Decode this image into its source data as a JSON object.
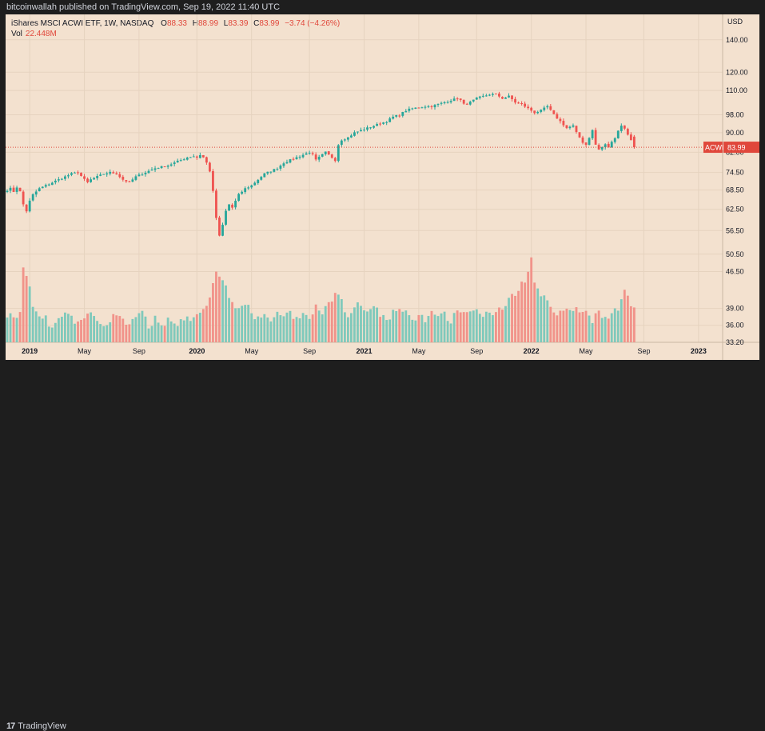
{
  "header": {
    "publisher_text": "bitcoinwallah published on TradingView.com, Sep 19, 2022 11:40 UTC"
  },
  "legend": {
    "symbol_text": "iShares MSCI ACWI ETF, 1W, NASDAQ",
    "open_label": "O",
    "open_value": "88.33",
    "high_label": "H",
    "high_value": "88.99",
    "low_label": "L",
    "low_value": "83.39",
    "close_label": "C",
    "close_value": "83.99",
    "change_value": "−3.74 (−4.26%)",
    "vol_label": "Vol",
    "vol_value": "22.448M"
  },
  "footer": {
    "brand_text": "TradingView",
    "logo_text": "17"
  },
  "colors": {
    "up": "#26a69a",
    "down": "#ef5350",
    "up_vol": "#7fc9bb",
    "down_vol": "#f1938a",
    "background": "#f3e1cf",
    "price_line": "#e0473b"
  },
  "chart_data": {
    "type": "candlestick",
    "symbol": "ACWI",
    "interval": "1W",
    "currency_label": "USD",
    "current_price": 83.99,
    "current_price_label": "ACWI",
    "current_price_text": "83.99",
    "y_scale": "log",
    "ylim": [
      33.2,
      158
    ],
    "y_ticks": [
      {
        "value": 140,
        "label": "140.00"
      },
      {
        "value": 120,
        "label": "120.00"
      },
      {
        "value": 110,
        "label": "110.00"
      },
      {
        "value": 98,
        "label": "98.00"
      },
      {
        "value": 90,
        "label": "90.00"
      },
      {
        "value": 82,
        "label": "82.00"
      },
      {
        "value": 74.5,
        "label": "74.50"
      },
      {
        "value": 68.5,
        "label": "68.50"
      },
      {
        "value": 62.5,
        "label": "62.50"
      },
      {
        "value": 56.5,
        "label": "56.50"
      },
      {
        "value": 50.5,
        "label": "50.50"
      },
      {
        "value": 46.5,
        "label": "46.50"
      },
      {
        "value": 39,
        "label": "39.00"
      },
      {
        "value": 36,
        "label": "36.00"
      },
      {
        "value": 33.2,
        "label": "33.20"
      }
    ],
    "x_ticks": [
      {
        "label": "2019",
        "week": 7,
        "bold": true
      },
      {
        "label": "May",
        "week": 24,
        "bold": false
      },
      {
        "label": "Sep",
        "week": 41,
        "bold": false
      },
      {
        "label": "2020",
        "week": 59,
        "bold": true
      },
      {
        "label": "May",
        "week": 76,
        "bold": false
      },
      {
        "label": "Sep",
        "week": 94,
        "bold": false
      },
      {
        "label": "2021",
        "week": 111,
        "bold": true
      },
      {
        "label": "May",
        "week": 128,
        "bold": false
      },
      {
        "label": "Sep",
        "week": 146,
        "bold": false
      },
      {
        "label": "2022",
        "week": 163,
        "bold": true
      },
      {
        "label": "May",
        "week": 180,
        "bold": false
      },
      {
        "label": "Sep",
        "week": 198,
        "bold": false
      },
      {
        "label": "2023",
        "week": 215,
        "bold": true
      }
    ],
    "close_anchors": [
      [
        0,
        68.5
      ],
      [
        1,
        69
      ],
      [
        2,
        68
      ],
      [
        3,
        69.5
      ],
      [
        4,
        68
      ],
      [
        5,
        64
      ],
      [
        6,
        62
      ],
      [
        7,
        65
      ],
      [
        8,
        67
      ],
      [
        9,
        68
      ],
      [
        10,
        69
      ],
      [
        12,
        70
      ],
      [
        14,
        71
      ],
      [
        16,
        72
      ],
      [
        18,
        73
      ],
      [
        20,
        74
      ],
      [
        22,
        74.5
      ],
      [
        24,
        72
      ],
      [
        25,
        71
      ],
      [
        26,
        72
      ],
      [
        28,
        73
      ],
      [
        30,
        74
      ],
      [
        32,
        74.5
      ],
      [
        34,
        74
      ],
      [
        36,
        72
      ],
      [
        38,
        71
      ],
      [
        40,
        73
      ],
      [
        42,
        74
      ],
      [
        44,
        75
      ],
      [
        46,
        76
      ],
      [
        48,
        76.5
      ],
      [
        50,
        77
      ],
      [
        52,
        78
      ],
      [
        54,
        79
      ],
      [
        56,
        80
      ],
      [
        58,
        80.5
      ],
      [
        59,
        80
      ],
      [
        60,
        81
      ],
      [
        61,
        80
      ],
      [
        62,
        78
      ],
      [
        63,
        75
      ],
      [
        64,
        68
      ],
      [
        65,
        60
      ],
      [
        66,
        55
      ],
      [
        67,
        58
      ],
      [
        68,
        62
      ],
      [
        69,
        64
      ],
      [
        70,
        63
      ],
      [
        71,
        65
      ],
      [
        72,
        67
      ],
      [
        73,
        68
      ],
      [
        74,
        69
      ],
      [
        76,
        70
      ],
      [
        78,
        72
      ],
      [
        80,
        74
      ],
      [
        82,
        75
      ],
      [
        84,
        76
      ],
      [
        86,
        78
      ],
      [
        88,
        79
      ],
      [
        90,
        80
      ],
      [
        92,
        81
      ],
      [
        94,
        82
      ],
      [
        95,
        81
      ],
      [
        96,
        79
      ],
      [
        97,
        80
      ],
      [
        98,
        81
      ],
      [
        99,
        82
      ],
      [
        100,
        81
      ],
      [
        101,
        80
      ],
      [
        102,
        79
      ],
      [
        103,
        85
      ],
      [
        104,
        87
      ],
      [
        106,
        88
      ],
      [
        108,
        90
      ],
      [
        110,
        91
      ],
      [
        112,
        92
      ],
      [
        114,
        93
      ],
      [
        116,
        94
      ],
      [
        118,
        95
      ],
      [
        120,
        97
      ],
      [
        122,
        98
      ],
      [
        124,
        100
      ],
      [
        126,
        101
      ],
      [
        128,
        101.5
      ],
      [
        130,
        102
      ],
      [
        132,
        102
      ],
      [
        134,
        103
      ],
      [
        136,
        104
      ],
      [
        138,
        105
      ],
      [
        140,
        106
      ],
      [
        141,
        105
      ],
      [
        142,
        103
      ],
      [
        144,
        104
      ],
      [
        146,
        106
      ],
      [
        148,
        107
      ],
      [
        150,
        108
      ],
      [
        152,
        108
      ],
      [
        154,
        106
      ],
      [
        156,
        107
      ],
      [
        158,
        104
      ],
      [
        160,
        103
      ],
      [
        162,
        101
      ],
      [
        164,
        99
      ],
      [
        166,
        100
      ],
      [
        168,
        102
      ],
      [
        170,
        98
      ],
      [
        172,
        95
      ],
      [
        174,
        92
      ],
      [
        176,
        93
      ],
      [
        177,
        90
      ],
      [
        178,
        88
      ],
      [
        179,
        86
      ],
      [
        180,
        85
      ],
      [
        181,
        88
      ],
      [
        182,
        91
      ],
      [
        183,
        85
      ],
      [
        184,
        83
      ],
      [
        185,
        84
      ],
      [
        186,
        85
      ],
      [
        187,
        84
      ],
      [
        188,
        86
      ],
      [
        189,
        88
      ],
      [
        190,
        91
      ],
      [
        191,
        93
      ],
      [
        192,
        92
      ],
      [
        193,
        89
      ],
      [
        194,
        87
      ],
      [
        195,
        88.33
      ]
    ],
    "vol_min": 33.2,
    "vol_max": 50.5,
    "volume_anchors": [
      [
        0,
        38
      ],
      [
        2,
        37
      ],
      [
        4,
        39
      ],
      [
        5,
        48
      ],
      [
        6,
        46
      ],
      [
        8,
        40
      ],
      [
        10,
        38
      ],
      [
        12,
        37
      ],
      [
        14,
        36
      ],
      [
        16,
        37
      ],
      [
        18,
        38
      ],
      [
        20,
        37
      ],
      [
        22,
        36
      ],
      [
        24,
        37
      ],
      [
        26,
        38
      ],
      [
        28,
        37
      ],
      [
        30,
        36
      ],
      [
        32,
        37
      ],
      [
        34,
        38
      ],
      [
        36,
        37
      ],
      [
        38,
        36
      ],
      [
        40,
        37
      ],
      [
        42,
        38
      ],
      [
        44,
        36
      ],
      [
        46,
        37
      ],
      [
        48,
        36
      ],
      [
        50,
        37
      ],
      [
        52,
        36
      ],
      [
        54,
        37
      ],
      [
        56,
        38
      ],
      [
        58,
        37
      ],
      [
        60,
        38
      ],
      [
        62,
        39
      ],
      [
        64,
        44
      ],
      [
        65,
        46
      ],
      [
        66,
        45
      ],
      [
        67,
        44
      ],
      [
        68,
        43
      ],
      [
        70,
        40
      ],
      [
        72,
        39
      ],
      [
        74,
        40
      ],
      [
        76,
        38
      ],
      [
        78,
        37
      ],
      [
        80,
        38
      ],
      [
        82,
        37
      ],
      [
        84,
        38
      ],
      [
        86,
        37
      ],
      [
        88,
        38
      ],
      [
        90,
        37
      ],
      [
        92,
        38
      ],
      [
        94,
        37
      ],
      [
        96,
        39
      ],
      [
        98,
        38
      ],
      [
        100,
        40
      ],
      [
        102,
        42
      ],
      [
        104,
        40
      ],
      [
        106,
        38
      ],
      [
        108,
        39
      ],
      [
        110,
        40
      ],
      [
        112,
        38
      ],
      [
        114,
        39
      ],
      [
        116,
        38
      ],
      [
        118,
        37
      ],
      [
        120,
        38
      ],
      [
        122,
        39
      ],
      [
        124,
        38
      ],
      [
        126,
        37
      ],
      [
        128,
        38
      ],
      [
        130,
        37
      ],
      [
        132,
        38
      ],
      [
        134,
        37
      ],
      [
        136,
        38
      ],
      [
        138,
        37
      ],
      [
        140,
        38
      ],
      [
        142,
        39
      ],
      [
        144,
        38
      ],
      [
        146,
        39
      ],
      [
        148,
        38
      ],
      [
        150,
        39
      ],
      [
        152,
        38
      ],
      [
        154,
        39
      ],
      [
        156,
        41
      ],
      [
        158,
        42
      ],
      [
        160,
        44
      ],
      [
        162,
        46
      ],
      [
        163,
        50
      ],
      [
        164,
        45
      ],
      [
        166,
        42
      ],
      [
        168,
        40
      ],
      [
        170,
        39
      ],
      [
        172,
        38
      ],
      [
        174,
        39
      ],
      [
        176,
        38
      ],
      [
        178,
        39
      ],
      [
        180,
        38
      ],
      [
        182,
        37
      ],
      [
        184,
        38
      ],
      [
        186,
        37
      ],
      [
        188,
        38
      ],
      [
        190,
        39
      ],
      [
        192,
        42
      ],
      [
        194,
        40
      ],
      [
        195,
        39
      ]
    ]
  }
}
